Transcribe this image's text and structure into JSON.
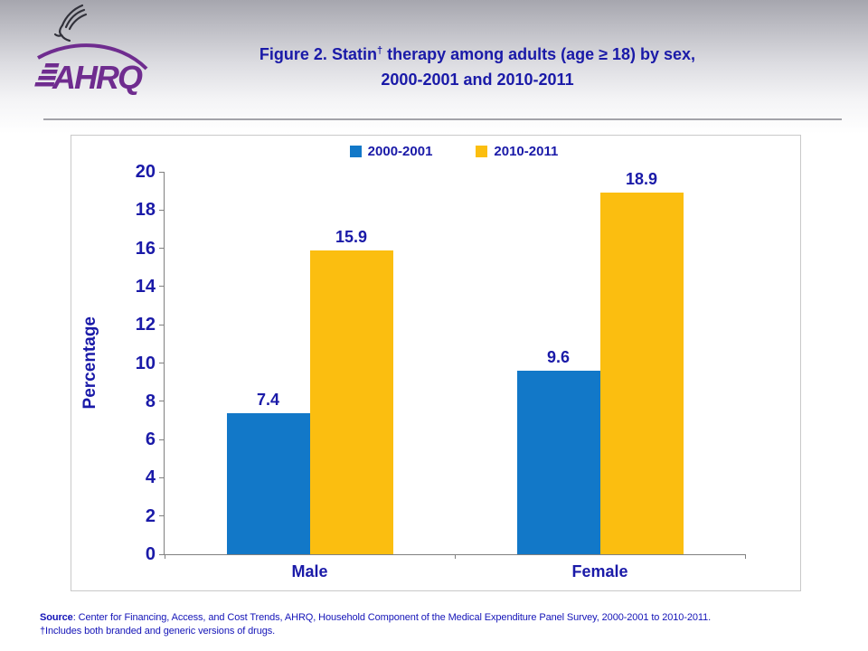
{
  "header": {
    "eagle_alt": "HHS eagle symbol",
    "logo_text": "AHRQ",
    "title": {
      "line1_prefix": "Figure 2. Statin",
      "dagger": "†",
      "line1_suffix": " therapy among adults (age ≥ 18) by sex,",
      "line2": "2000-2001 and 2010-2011"
    }
  },
  "chart_data": {
    "type": "bar",
    "title": "Figure 2. Statin† therapy among adults (age ≥ 18) by sex, 2000-2001 and 2010-2011",
    "categories": [
      "Male",
      "Female"
    ],
    "series": [
      {
        "name": "2000-2001",
        "color": "#1278C8",
        "values": [
          7.4,
          9.6
        ]
      },
      {
        "name": "2010-2011",
        "color": "#FBBE10",
        "values": [
          15.9,
          18.9
        ]
      }
    ],
    "xlabel": "",
    "ylabel": "Percentage",
    "ylim": [
      0,
      20
    ],
    "ytick_step": 2,
    "grid": false,
    "legend_position": "top",
    "value_labels": true
  },
  "footer": {
    "source_label": "Source",
    "source_text": ": Center for Financing, Access, and Cost Trends, AHRQ,  Household Component of the Medical Expenditure Panel Survey,  2000-2001 to  2010-2011.",
    "footnote": "†Includes both branded and generic versions of drugs."
  },
  "colors": {
    "accent_navy": "#1A1AA8",
    "bar_blue": "#1278C8",
    "bar_gold": "#FBBE10",
    "logo_purple": "#6F2C8F",
    "axis_gray": "#808080",
    "source_blue": "#1414B8"
  }
}
